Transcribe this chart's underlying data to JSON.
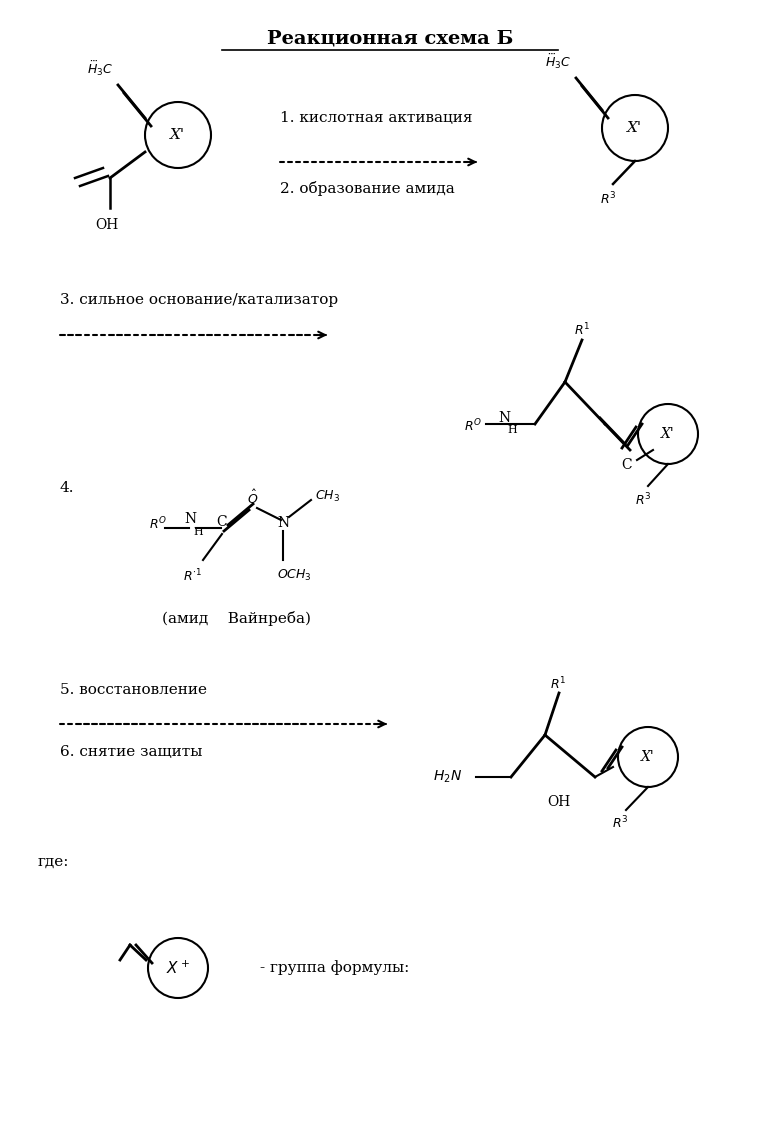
{
  "title": "Реакционная схема Б",
  "bg_color": "#ffffff",
  "step1": "1. кислотная активация",
  "step2": "2. образование амида",
  "step3": "3. сильное основание/катализатор",
  "step4": "4.",
  "step5": "5. восстановление",
  "step6": "6. снятие защиты",
  "weinreb": "(амид    Вайнреба)",
  "where": "где:",
  "formula_group": "- группа формулы:"
}
